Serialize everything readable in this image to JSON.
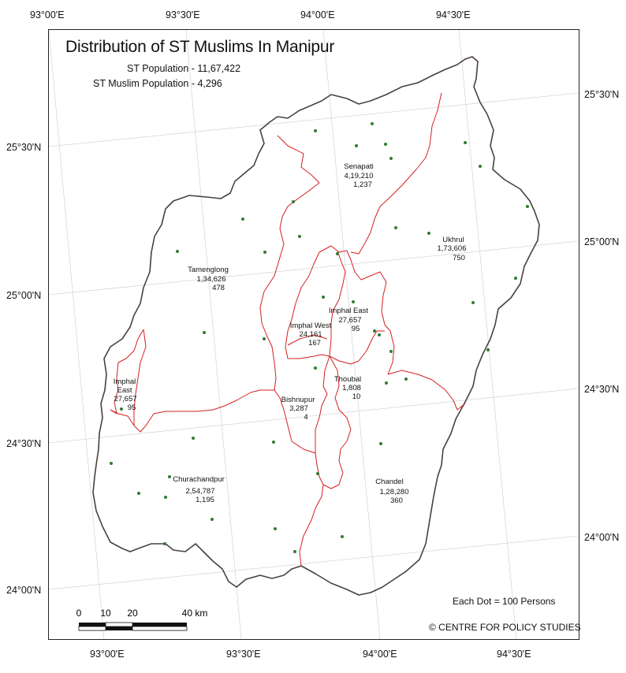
{
  "map": {
    "title": "Distribution of ST Muslims In Manipur",
    "st_population": "ST Population - 11,67,422",
    "st_muslim_population": "ST Muslim Population - 4,296",
    "dot_legend": "Each Dot = 100 Persons",
    "credit": "© CENTRE FOR POLICY STUDIES",
    "colors": {
      "state_border": "#4a4040",
      "district_border": "#d42020",
      "dot": "#2e7d32",
      "graticule": "#d8d8d8"
    }
  },
  "coords": {
    "top": [
      "93°00'E",
      "93°30'E",
      "94°00'E",
      "94°30'E"
    ],
    "bottom": [
      "93°00'E",
      "93°30'E",
      "94°00'E",
      "94°30'E"
    ],
    "left": [
      "25°30'N",
      "25°00'N",
      "24°30'N",
      "24°00'N"
    ],
    "right": [
      "25°30'N",
      "25°00'N",
      "24°30'N",
      "24°00'N"
    ]
  },
  "districts": [
    {
      "name": "Senapati",
      "st_pop": "4,19,210",
      "muslims": "1,237"
    },
    {
      "name": "Ukhrul",
      "st_pop": "1,73,606",
      "muslims": "750"
    },
    {
      "name": "Tamenglong",
      "st_pop": "1,34,626",
      "muslims": "478"
    },
    {
      "name": "Imphal East",
      "st_pop": "27,657",
      "muslims": "95"
    },
    {
      "name": "Imphal West",
      "st_pop": "24,161",
      "muslims": "167"
    },
    {
      "name": "Imphal",
      "name2": "East",
      "st_pop": "27,657",
      "muslims": "95"
    },
    {
      "name": "Thoubal",
      "st_pop": "1,808",
      "muslims": "10"
    },
    {
      "name": "Bishnupur",
      "st_pop": "3,287",
      "muslims": "4"
    },
    {
      "name": "Churachandpur",
      "st_pop": "2,54,787",
      "muslims": "1,195"
    },
    {
      "name": "Chandel",
      "st_pop": "1,28,280",
      "muslims": "360"
    }
  ],
  "scale_bar": {
    "ticks": [
      "0",
      "10",
      "20",
      "40 km"
    ]
  }
}
